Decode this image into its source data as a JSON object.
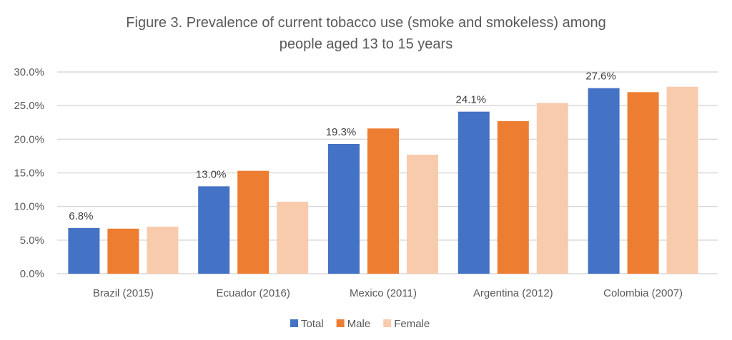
{
  "chart_data": {
    "type": "bar",
    "title": "Figure 3.  Prevalence of current tobacco use (smoke and smokeless) among",
    "title_line2": "people aged 13 to 15 years",
    "categories": [
      "Brazil (2015)",
      "Ecuador (2016)",
      "Mexico (2011)",
      "Argentina (2012)",
      "Colombia (2007)"
    ],
    "series": [
      {
        "name": "Total",
        "color": "#4472C4",
        "values": [
          6.8,
          13.0,
          19.3,
          24.1,
          27.6
        ],
        "data_labels": [
          "6.8%",
          "13.0%",
          "19.3%",
          "24.1%",
          "27.6%"
        ]
      },
      {
        "name": "Male",
        "color": "#ED7D31",
        "values": [
          6.7,
          15.3,
          21.6,
          22.7,
          27.0
        ]
      },
      {
        "name": "Female",
        "color": "#F8CBAD",
        "values": [
          7.0,
          10.7,
          17.7,
          25.4,
          27.8
        ]
      }
    ],
    "yticks": [
      "0.0%",
      "5.0%",
      "10.0%",
      "15.0%",
      "20.0%",
      "25.0%",
      "30.0%"
    ],
    "ylim": [
      0,
      30
    ],
    "xlabel": "",
    "ylabel": "",
    "grid": true,
    "legend": "bottom"
  }
}
